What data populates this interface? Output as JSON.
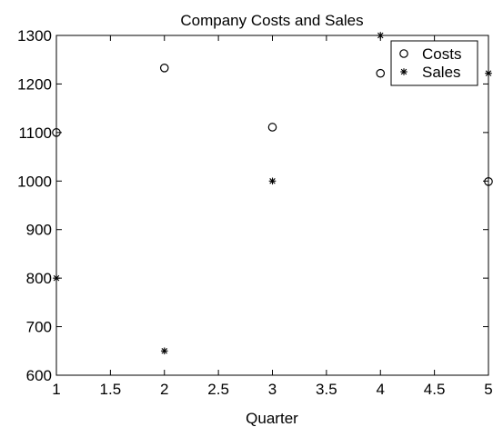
{
  "chart_data": {
    "type": "scatter",
    "title": "Company Costs and Sales",
    "xlabel": "Quarter",
    "ylabel": "",
    "xlim": [
      1,
      5
    ],
    "ylim": [
      600,
      1300
    ],
    "xticks": [
      "1",
      "1.5",
      "2",
      "2.5",
      "3",
      "3.5",
      "4",
      "4.5",
      "5"
    ],
    "yticks": [
      "600",
      "700",
      "800",
      "900",
      "1000",
      "1100",
      "1200",
      "1300"
    ],
    "grid": false,
    "legend_position": "top-right",
    "series": [
      {
        "name": "Costs",
        "marker": "circle",
        "x": [
          1,
          2,
          3,
          4,
          5
        ],
        "y": [
          1100,
          1233,
          1111,
          1222,
          999
        ]
      },
      {
        "name": "Sales",
        "marker": "star",
        "x": [
          1,
          2,
          3,
          4,
          5
        ],
        "y": [
          800,
          650,
          1000,
          1300,
          1222
        ]
      }
    ]
  }
}
